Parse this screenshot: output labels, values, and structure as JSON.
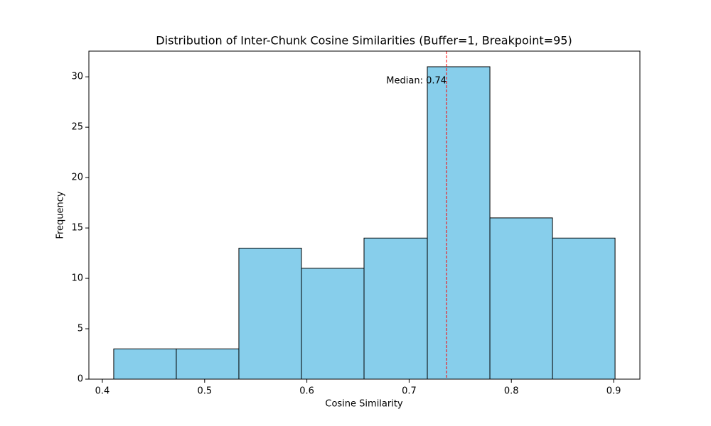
{
  "chart_data": {
    "type": "histogram",
    "title": "Distribution of Inter-Chunk Cosine Similarities (Buffer=1, Breakpoint=95)",
    "x_label": "Cosine Similarity",
    "y_label": "Frequency",
    "bins": [
      0.4111,
      0.4723,
      0.5335,
      0.5947,
      0.6559,
      0.7178,
      0.779,
      0.8402,
      0.9014
    ],
    "values": [
      3,
      3,
      13,
      11,
      14,
      31,
      16,
      14
    ],
    "color": "#87ceeb",
    "edge_color": "#000000",
    "xlim": [
      0.3868,
      0.9257
    ],
    "ylim": [
      0,
      32.55
    ],
    "xticks": [
      0.4,
      0.5,
      0.6,
      0.7,
      0.8,
      0.9
    ],
    "yticks": [
      0,
      5,
      10,
      15,
      20,
      25,
      30
    ],
    "median": {
      "value": 0.7366,
      "label": "Median: 0.74",
      "color": "#ff0000"
    }
  }
}
